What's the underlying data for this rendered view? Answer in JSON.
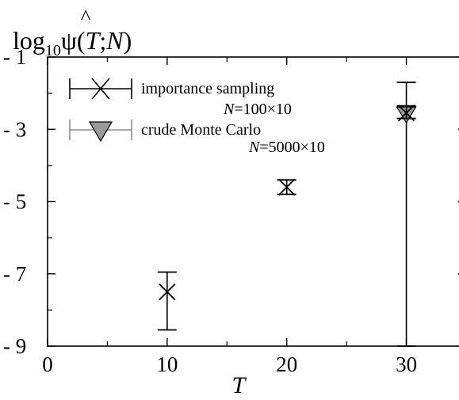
{
  "chart_data": {
    "type": "scatter",
    "title": "",
    "ylabel": {
      "prefix": "log",
      "sub": "10",
      "hat": "^",
      "psi": "ψ",
      "open": "(",
      "T": "T",
      "semi": ";",
      "N": "N",
      "close": ")"
    },
    "xlabel": "T",
    "xlim": [
      0,
      35
    ],
    "ylim": [
      -9,
      -1
    ],
    "x_ticks": [
      0,
      10,
      20,
      30
    ],
    "y_ticks": [
      -1,
      -3,
      -5,
      -7,
      -9
    ],
    "y_tick_labels": [
      "- 1",
      "- 3",
      "- 5",
      "- 7",
      "- 9"
    ],
    "grid": false,
    "legend_position": "top-left",
    "series": [
      {
        "name": "importance sampling",
        "n_label": {
          "N": "N",
          "value": "=100",
          "mult": "×",
          "runs": "10"
        },
        "marker": "x",
        "color": "#000000",
        "points": [
          {
            "x": 10,
            "y": -7.5,
            "yerr_low": -8.55,
            "yerr_high": -6.95
          },
          {
            "x": 20,
            "y": -4.6,
            "yerr_low": -4.8,
            "yerr_high": -4.4
          },
          {
            "x": 30,
            "y": -2.55,
            "yerr_low": -2.7,
            "yerr_high": -2.35
          }
        ]
      },
      {
        "name": "crude Monte Carlo",
        "n_label": {
          "N": "N",
          "value": "=5000",
          "mult": "×",
          "runs": "10"
        },
        "marker": "triangle-down",
        "color": "#8c8c8c",
        "points": [
          {
            "x": 30,
            "y": -2.6,
            "yerr_low": -9,
            "yerr_high": -1.7
          }
        ]
      }
    ]
  }
}
